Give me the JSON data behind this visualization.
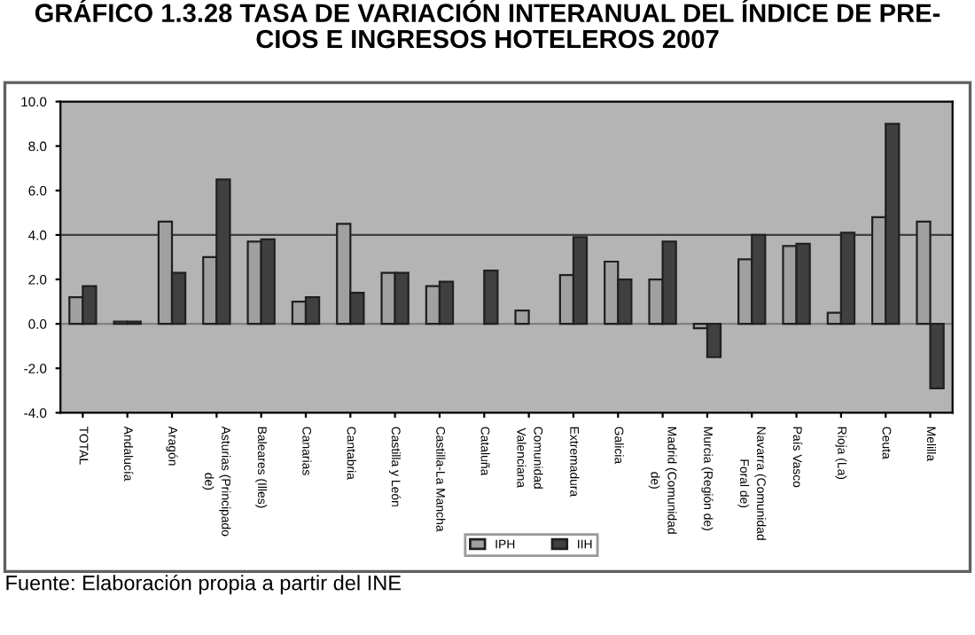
{
  "chart_data": {
    "type": "bar",
    "title": "GRÁFICO 1.3.28 TASA DE VARIACIÓN INTERANUAL DEL ÍNDICE DE PRE-\nCIOS E INGRESOS HOTELEROS 2007",
    "categories": [
      "TOTAL",
      "Andalucía",
      "Aragón",
      "Asturias (Principado\nde)",
      "Baleares (Illes)",
      "Canarias",
      "Cantabria",
      "Castilla y León",
      "Castilla-La Mancha",
      "Cataluña",
      "Comunidad\nValenciana",
      "Extremadura",
      "Galicia",
      "Madrid (Comunidad\nde)",
      "Murcia (Región de)",
      "Navarra (Comunidad\nForal de)",
      "País Vasco",
      "Rioja (La)",
      "Ceuta",
      "Melilla"
    ],
    "series": [
      {
        "name": "IPH",
        "color": "#a0a0a0",
        "values": [
          1.2,
          0.1,
          4.6,
          3.0,
          3.7,
          1.0,
          4.5,
          2.3,
          1.7,
          null,
          0.6,
          2.2,
          2.8,
          2.0,
          -0.2,
          2.9,
          3.5,
          0.5,
          4.8,
          4.6
        ]
      },
      {
        "name": "IIH",
        "color": "#404040",
        "values": [
          1.7,
          0.1,
          2.3,
          6.5,
          3.8,
          1.2,
          1.4,
          2.3,
          1.9,
          2.4,
          null,
          3.9,
          2.0,
          3.7,
          -1.5,
          4.0,
          3.6,
          4.1,
          9.0,
          -2.9
        ]
      }
    ],
    "ylim": [
      -4,
      10
    ],
    "yticks": [
      {
        "value": -4,
        "label": "-4.0"
      },
      {
        "value": -2,
        "label": "-2.0"
      },
      {
        "value": 0,
        "label": "0.0"
      },
      {
        "value": 2,
        "label": "2.0"
      },
      {
        "value": 4,
        "label": "4.0"
      },
      {
        "value": 6,
        "label": "6.0"
      },
      {
        "value": 8,
        "label": "8.0"
      },
      {
        "value": 10,
        "label": "10.0"
      }
    ],
    "ref_lines": [
      {
        "axis": "y",
        "value": 4,
        "label": null,
        "color": "#404040"
      }
    ],
    "legend": "bottom",
    "annotations": [
      "Fuente: Elaboración propia a partir del INE"
    ]
  }
}
